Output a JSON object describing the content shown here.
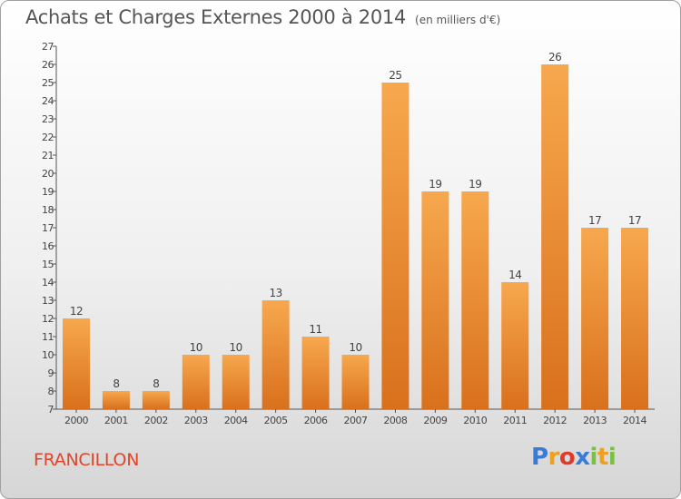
{
  "header": {
    "title": "Achats et Charges Externes 2000 à 2014",
    "unit": "(en milliers d'€)"
  },
  "footer": {
    "commune": "FRANCILLON",
    "logo_letters": [
      {
        "ch": "P",
        "color": "#3a7bd5"
      },
      {
        "ch": "r",
        "color": "#f0a020"
      },
      {
        "ch": "o",
        "color": "#e03a2a"
      },
      {
        "ch": "x",
        "color": "#3a7bd5"
      },
      {
        "ch": "i",
        "color": "#7ac143"
      },
      {
        "ch": "t",
        "color": "#f0a020"
      },
      {
        "ch": "i",
        "color": "#7ac143"
      }
    ]
  },
  "colors": {
    "bar_light": "#f7a84e",
    "bar_dark": "#d9701c",
    "axis": "#555555",
    "label": "#444444"
  },
  "chart_data": {
    "type": "bar",
    "title": "Achats et Charges Externes 2000 à 2014",
    "subtitle": "(en milliers d'€)",
    "xlabel": "",
    "ylabel": "",
    "categories": [
      "2000",
      "2001",
      "2002",
      "2003",
      "2004",
      "2005",
      "2006",
      "2007",
      "2008",
      "2009",
      "2010",
      "2011",
      "2012",
      "2013",
      "2014"
    ],
    "values": [
      12,
      8,
      8,
      10,
      10,
      13,
      11,
      10,
      25,
      19,
      19,
      14,
      26,
      17,
      17
    ],
    "ylim": [
      7,
      27
    ],
    "yticks": [
      7,
      8,
      9,
      10,
      11,
      12,
      13,
      14,
      15,
      16,
      17,
      18,
      19,
      20,
      21,
      22,
      23,
      24,
      25,
      26,
      27
    ],
    "grid": false,
    "legend": "none"
  }
}
